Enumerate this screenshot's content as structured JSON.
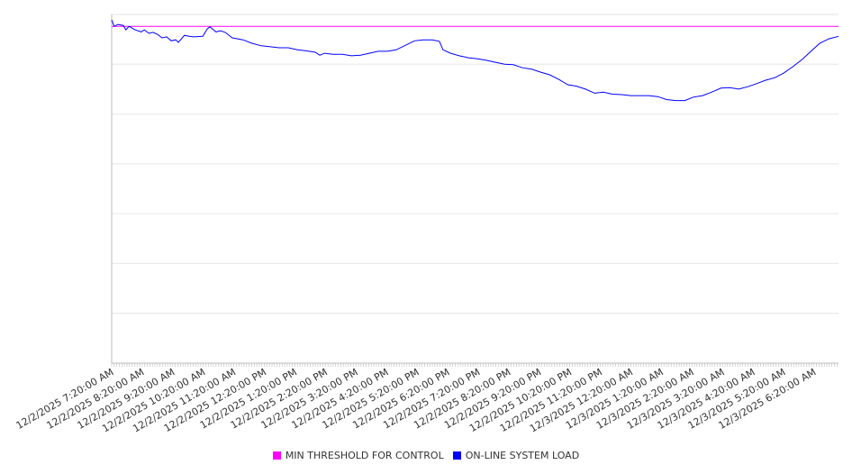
{
  "chart_data": {
    "type": "line",
    "title": "",
    "xlabel": "",
    "ylabel": "",
    "x_unit": "minutes since 12/2/2025 7:20:00 AM",
    "xlim": [
      0,
      1428
    ],
    "ylim": [
      0,
      70
    ],
    "y_gridlines": [
      0,
      10,
      20,
      30,
      40,
      50,
      60,
      70
    ],
    "grid": true,
    "legend_position": "bottom",
    "x_tick_labels": [
      "12/2/2025 7:20:00 AM",
      "12/2/2025 8:20:00 AM",
      "12/2/2025 9:20:00 AM",
      "12/2/2025 10:20:00 AM",
      "12/2/2025 11:20:00 AM",
      "12/2/2025 12:20:00 PM",
      "12/2/2025 1:20:00 PM",
      "12/2/2025 2:20:00 PM",
      "12/2/2025 3:20:00 PM",
      "12/2/2025 4:20:00 PM",
      "12/2/2025 5:20:00 PM",
      "12/2/2025 6:20:00 PM",
      "12/2/2025 7:20:00 PM",
      "12/2/2025 8:20:00 PM",
      "12/2/2025 9:20:00 PM",
      "12/2/2025 10:20:00 PM",
      "12/2/2025 11:20:00 PM",
      "12/3/2025 12:20:00 AM",
      "12/3/2025 1:20:00 AM",
      "12/3/2025 2:20:00 AM",
      "12/3/2025 3:20:00 AM",
      "12/3/2025 4:20:00 AM",
      "12/3/2025 5:20:00 AM",
      "12/3/2025 6:20:00 AM"
    ],
    "x_tick_interval": 60,
    "series": [
      {
        "name": "MIN THRESHOLD FOR CONTROL",
        "color": "#ff00ff",
        "x": [
          0,
          1428
        ],
        "values": [
          67.6,
          67.6
        ]
      },
      {
        "name": "ON-LINE SYSTEM LOAD",
        "color": "#0000ff",
        "x": [
          0,
          5,
          12,
          23,
          28,
          34,
          46,
          58,
          64,
          73,
          81,
          90,
          99,
          108,
          117,
          126,
          131,
          143,
          152,
          161,
          179,
          188,
          193,
          205,
          214,
          223,
          237,
          258,
          276,
          294,
          312,
          329,
          347,
          365,
          382,
          400,
          409,
          418,
          435,
          453,
          471,
          489,
          506,
          524,
          542,
          559,
          577,
          595,
          612,
          630,
          644,
          651,
          666,
          683,
          701,
          719,
          736,
          754,
          772,
          789,
          807,
          825,
          843,
          860,
          878,
          896,
          913,
          931,
          949,
          966,
          984,
          1002,
          1020,
          1037,
          1055,
          1073,
          1090,
          1108,
          1126,
          1143,
          1161,
          1179,
          1197,
          1214,
          1232,
          1250,
          1267,
          1285,
          1303,
          1320,
          1338,
          1356,
          1374,
          1391,
          1409,
          1428
        ],
        "values": [
          68.9,
          67.6,
          68.0,
          67.8,
          66.9,
          67.6,
          66.9,
          66.5,
          66.9,
          66.2,
          66.4,
          66.0,
          65.3,
          65.5,
          64.7,
          64.9,
          64.4,
          65.8,
          65.6,
          65.5,
          65.6,
          67.1,
          67.5,
          66.5,
          66.7,
          66.4,
          65.3,
          64.9,
          64.2,
          63.7,
          63.5,
          63.3,
          63.3,
          62.9,
          62.7,
          62.4,
          61.8,
          62.2,
          62.0,
          62.0,
          61.7,
          61.8,
          62.2,
          62.6,
          62.6,
          62.9,
          63.8,
          64.7,
          64.9,
          64.9,
          64.6,
          62.9,
          62.2,
          61.7,
          61.3,
          61.1,
          60.8,
          60.4,
          60.0,
          59.9,
          59.3,
          59.0,
          58.4,
          57.9,
          57.0,
          55.9,
          55.6,
          55.0,
          54.2,
          54.4,
          54.0,
          53.9,
          53.7,
          53.7,
          53.7,
          53.5,
          52.9,
          52.7,
          52.7,
          53.4,
          53.7,
          54.4,
          55.2,
          55.3,
          55.0,
          55.5,
          56.1,
          56.8,
          57.3,
          58.2,
          59.5,
          60.9,
          62.6,
          64.2,
          65.1,
          65.6
        ]
      }
    ]
  }
}
